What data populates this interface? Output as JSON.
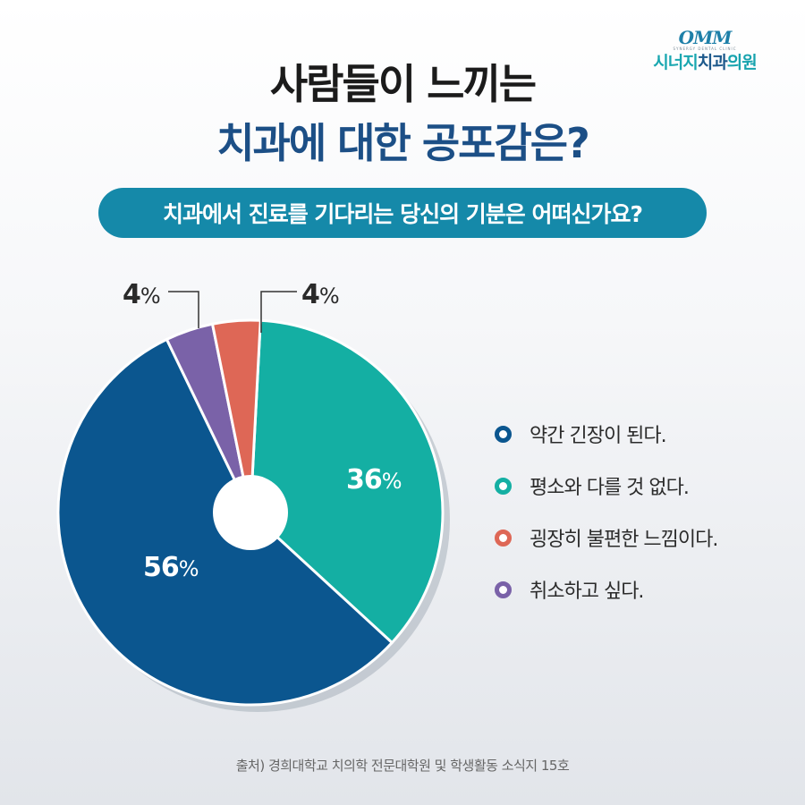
{
  "logo": {
    "mark": "OMM",
    "sub": "SYNERGY DENTAL CLINIC",
    "name_part1": "시너지",
    "name_part2": "치과",
    "name_part3": "의원"
  },
  "title_line1": "사람들이 느끼는",
  "title_line2": "치과에 대한 공포감은?",
  "question": "치과에서 진료를 기다리는 당신의 기분은 어떠신가요?",
  "source": "출처) 경희대학교 치의학 전문대학원 및 학생활동 소식지 15호",
  "colors": {
    "navy": "#0b568f",
    "teal": "#14afa3",
    "coral": "#de6756",
    "purple": "#7a62a8"
  },
  "chart_data": {
    "type": "pie",
    "categories": [
      "평소와 다를 것 없다.",
      "약간 긴장이 된다.",
      "취소하고 싶다.",
      "굉장히 불편한 느낌이다."
    ],
    "values": [
      36,
      56,
      4,
      4
    ],
    "colors": [
      "#14afa3",
      "#0b568f",
      "#7a62a8",
      "#de6756"
    ],
    "labels": {
      "teal": {
        "num": "36",
        "pct": "%"
      },
      "navy": {
        "num": "56",
        "pct": "%"
      },
      "purple": {
        "num": "4",
        "pct": "%"
      },
      "coral": {
        "num": "4",
        "pct": "%"
      }
    },
    "legend": [
      {
        "label": "약간 긴장이 된다.",
        "color": "#0b568f"
      },
      {
        "label": "평소와 다를 것 없다.",
        "color": "#14afa3"
      },
      {
        "label": "굉장히 불편한 느낌이다.",
        "color": "#de6756"
      },
      {
        "label": "취소하고 싶다.",
        "color": "#7a62a8"
      }
    ],
    "legend_position": "right"
  }
}
